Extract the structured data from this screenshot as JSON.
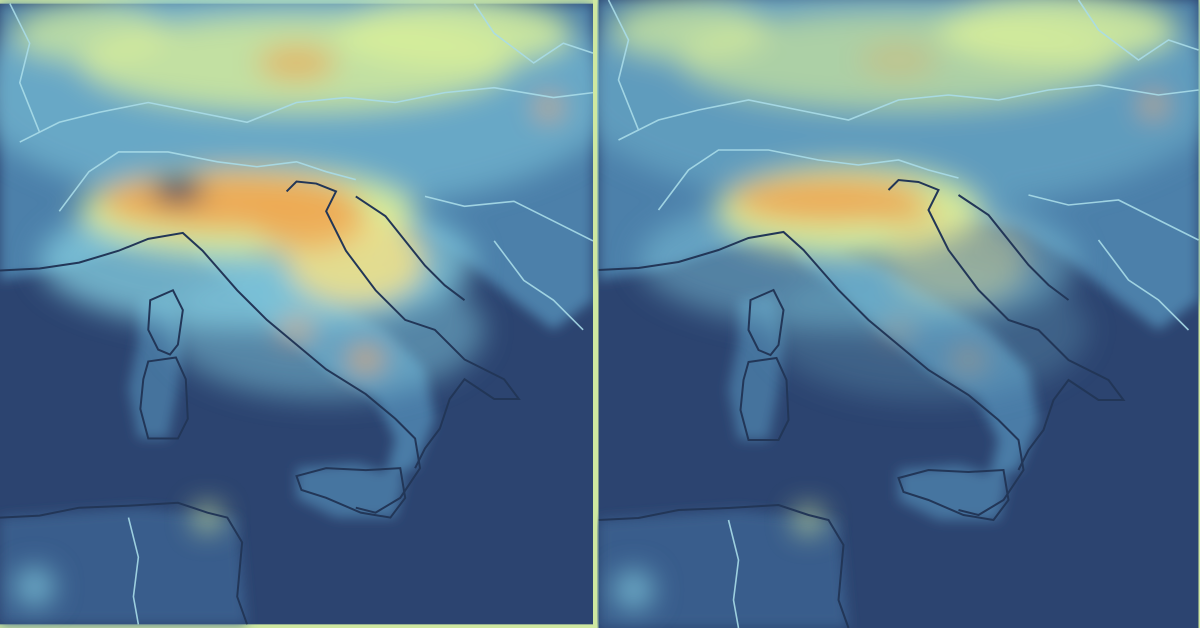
{
  "colors": {
    "background_sea": "#2c4470",
    "sea_mid": "#3a5f8f",
    "land_low": "#4f86b0",
    "cyan": "#7fc8dc",
    "light_green": "#d8ee9a",
    "yellow": "#eee08a",
    "orange": "#eda955",
    "hotspot_dark": "#1e2f5c",
    "border_line": "#a9dce8",
    "coast_line": "#223657",
    "divider": "#cfe8a0"
  },
  "panels": [
    {
      "id": "before",
      "pollution_level": 1.0
    },
    {
      "id": "after",
      "pollution_level": 0.45
    }
  ]
}
